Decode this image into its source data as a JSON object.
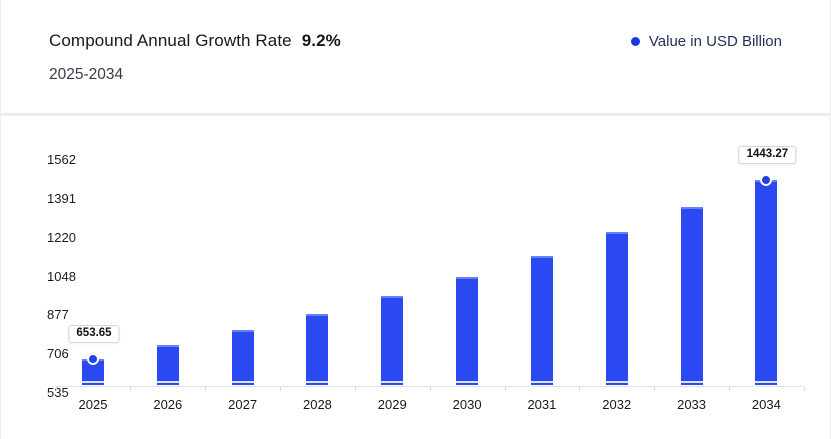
{
  "header": {
    "title": "Compound Annual Growth Rate",
    "cagr_value": "9.2%",
    "period": "2025-2034",
    "legend": {
      "label": "Value in USD Billion",
      "dot_color": "#1e38df"
    }
  },
  "chart_data": {
    "type": "bar",
    "title": "Compound Annual Growth Rate 9.2%, 2025-2034",
    "series_name": "Value in USD Billion",
    "categories": [
      "2025",
      "2026",
      "2027",
      "2028",
      "2029",
      "2030",
      "2031",
      "2032",
      "2033",
      "2034"
    ],
    "values": [
      653.65,
      713.8,
      779.5,
      851.2,
      929.5,
      1015.0,
      1108.4,
      1210.3,
      1321.7,
      1443.27
    ],
    "xlabel": "",
    "ylabel": "",
    "ylim": [
      535,
      1562
    ],
    "yticks": [
      535,
      706,
      877,
      1048,
      1220,
      1391,
      1562
    ],
    "grid": false,
    "legend_position": "top-right",
    "bar_color": "#2b49f2",
    "marker_color": "#2340e8",
    "annotations": [
      {
        "category": "2025",
        "value": 653.65,
        "label": "653.65"
      },
      {
        "category": "2034",
        "value": 1443.27,
        "label": "1443.27"
      }
    ]
  }
}
